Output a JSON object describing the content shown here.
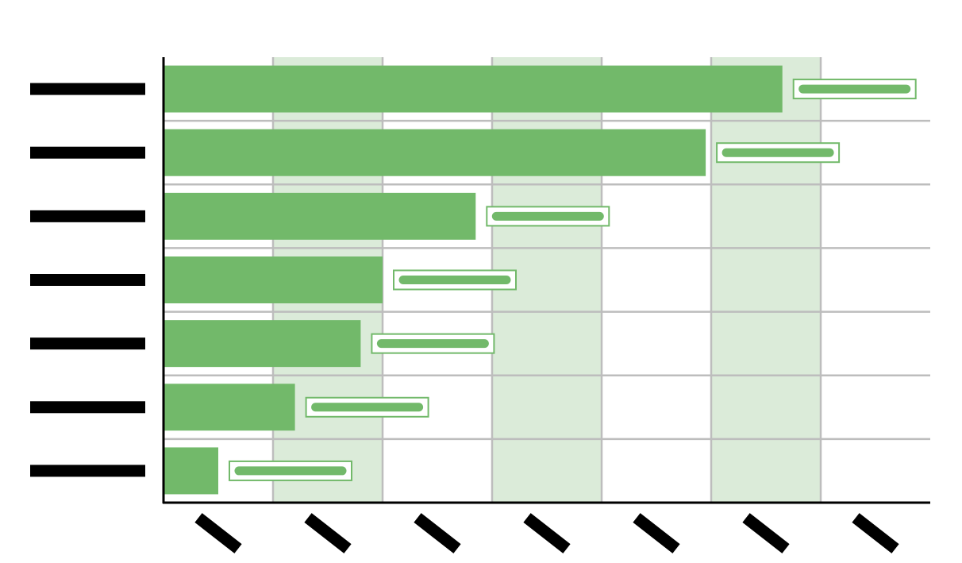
{
  "chart_data": {
    "type": "bar",
    "orientation": "horizontal",
    "title": "",
    "xlabel": "",
    "ylabel": "",
    "categories_redacted": true,
    "category_count": 7,
    "values": [
      113,
      99,
      57,
      40,
      36,
      24,
      10
    ],
    "xlim": [
      0,
      140
    ],
    "x_ticks": [
      0,
      20,
      40,
      60,
      80,
      100,
      120
    ],
    "x_ticks_redacted": true,
    "data_labels_redacted": true,
    "grid": true,
    "alternating_column_shading": true,
    "legend": "none",
    "colors": {
      "bar": "#72b96a",
      "band": "#dbebd9",
      "grid": "#bdbdbd",
      "axis": "#000000",
      "redaction": "#000000"
    }
  }
}
